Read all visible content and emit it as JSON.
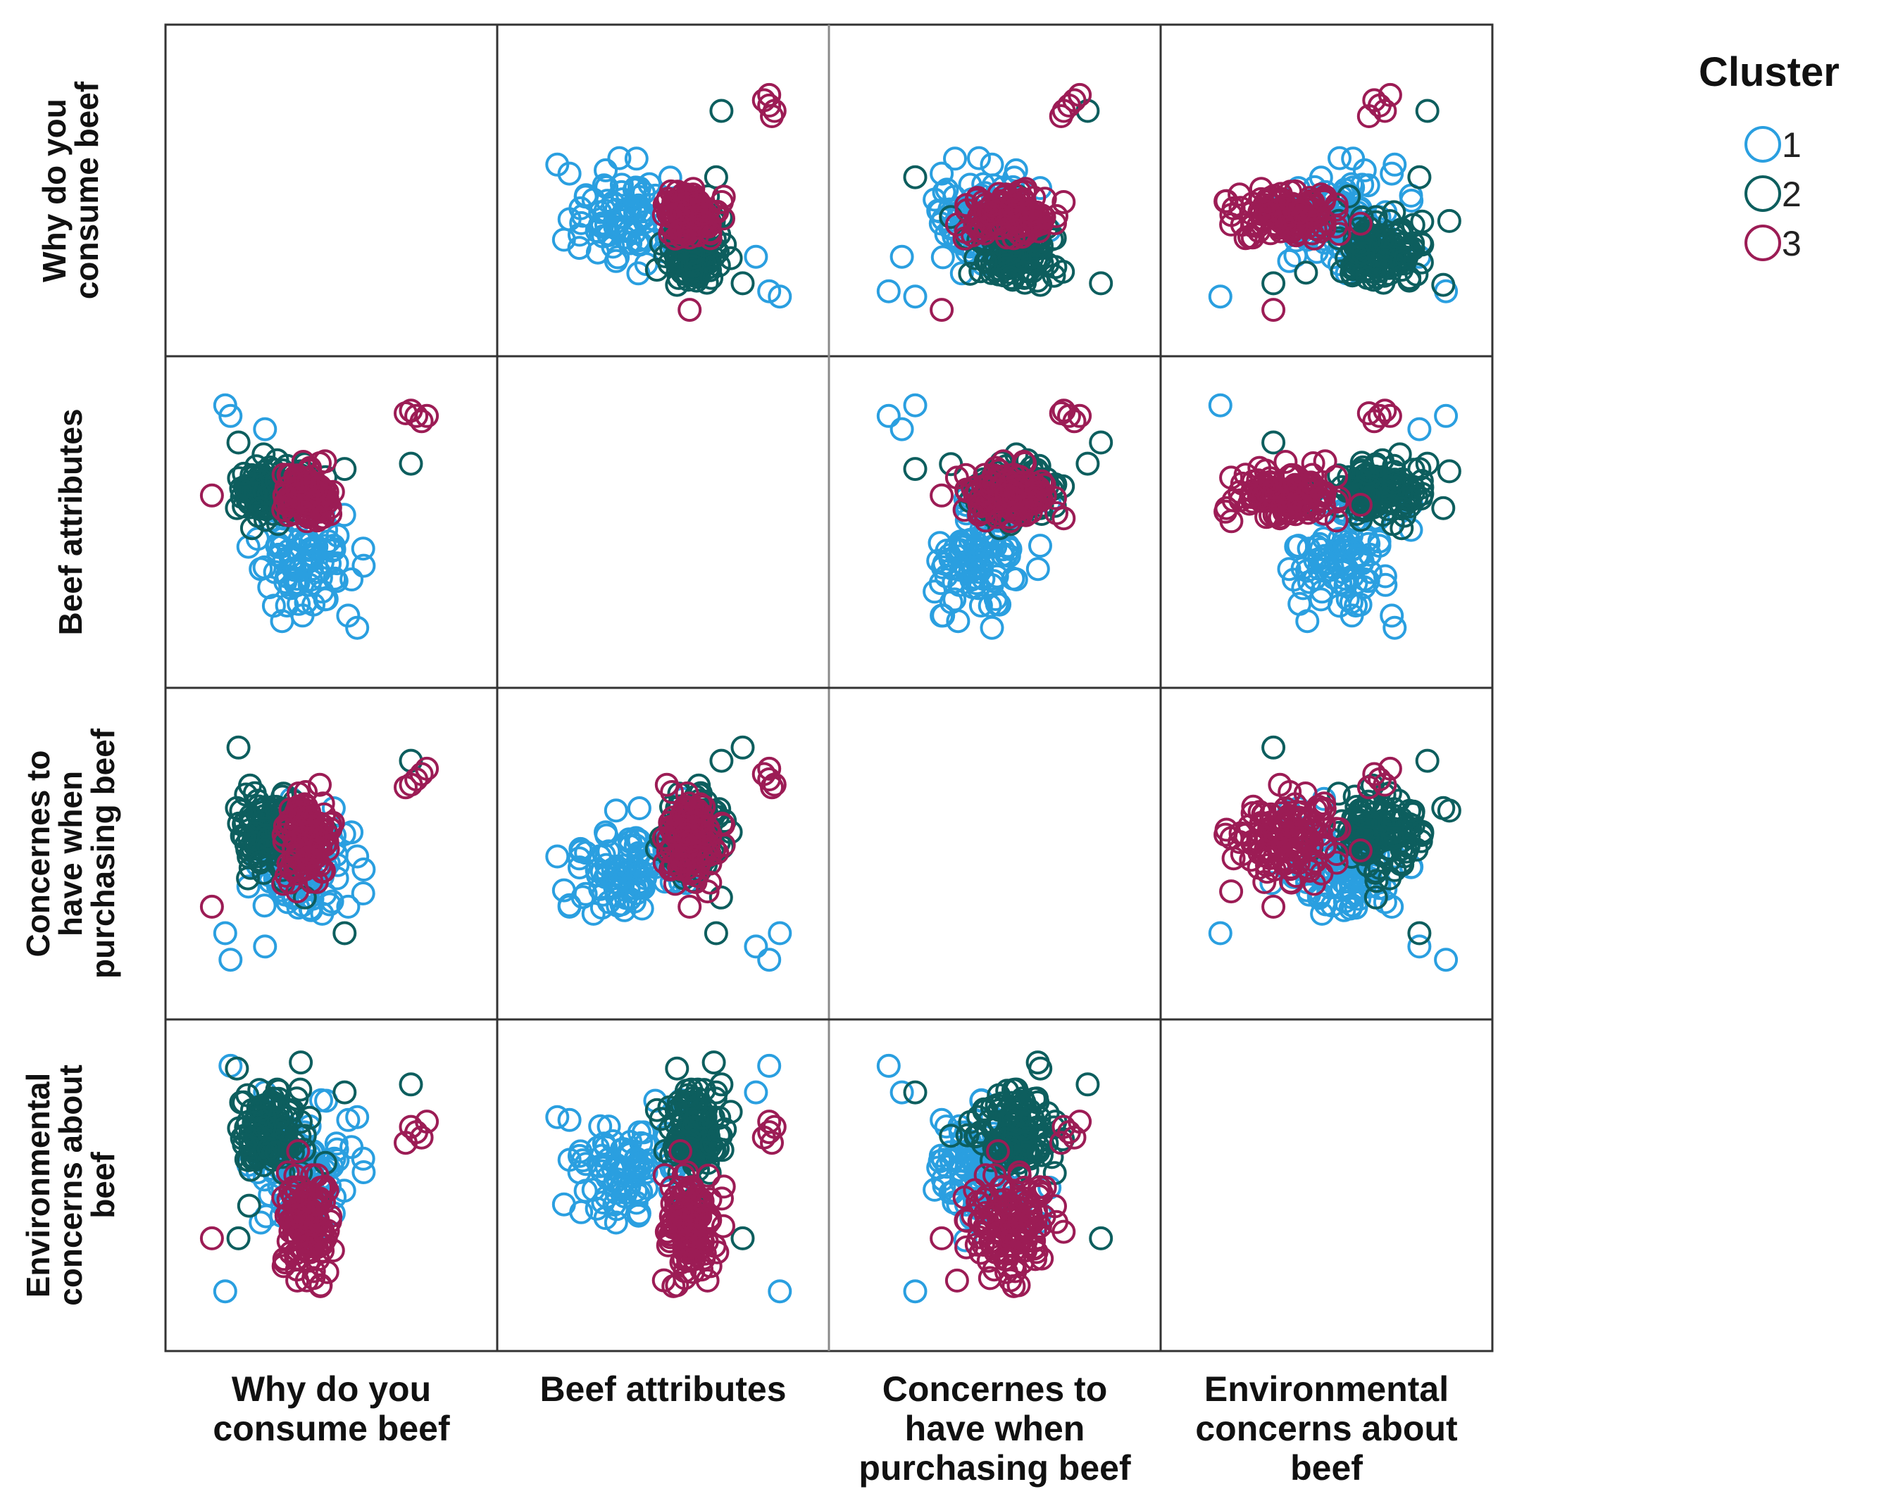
{
  "chart_data": {
    "type": "scatter",
    "subtype": "scatterplot-matrix",
    "variables": [
      {
        "label_lines": [
          "Why do you",
          "consume beef"
        ]
      },
      {
        "label_lines": [
          "Beef attributes"
        ]
      },
      {
        "label_lines": [
          "Concernes to",
          "have when",
          "purchasing beef"
        ]
      },
      {
        "label_lines": [
          "Environmental",
          "concerns about",
          "beef"
        ]
      }
    ],
    "axis_range": [
      0,
      1
    ],
    "diagonal": "empty",
    "grid": false,
    "legend": {
      "title": "Cluster",
      "placement": "top-right",
      "items": [
        {
          "label": "1",
          "color": "#2a9fe0"
        },
        {
          "label": "2",
          "color": "#0d5e5e"
        },
        {
          "label": "3",
          "color": "#9c1c55"
        }
      ]
    },
    "series": [
      {
        "name": "1",
        "color": "#2a9fe0",
        "centroid": [
          0.4,
          0.38,
          0.45,
          0.55
        ],
        "spread": [
          0.08,
          0.12,
          0.09,
          0.1
        ],
        "count": 90,
        "outliers": [
          [
            0.12,
            0.9,
            0.1,
            0.95
          ],
          [
            0.1,
            0.94,
            0.2,
            0.1
          ],
          [
            0.25,
            0.85,
            0.15,
            0.85
          ],
          [
            0.62,
            0.4,
            0.35,
            0.6
          ]
        ]
      },
      {
        "name": "2",
        "color": "#0d5e5e",
        "centroid": [
          0.27,
          0.62,
          0.58,
          0.7
        ],
        "spread": [
          0.06,
          0.05,
          0.08,
          0.09
        ],
        "count": 120,
        "outliers": [
          [
            0.15,
            0.8,
            0.9,
            0.3
          ],
          [
            0.55,
            0.7,
            0.2,
            0.85
          ],
          [
            0.8,
            0.72,
            0.85,
            0.88
          ]
        ]
      },
      {
        "name": "3",
        "color": "#9c1c55",
        "centroid": [
          0.4,
          0.6,
          0.55,
          0.35
        ],
        "spread": [
          0.05,
          0.05,
          0.08,
          0.1
        ],
        "count": 120,
        "outliers": [
          [
            0.82,
            0.9,
            0.78,
            0.7
          ],
          [
            0.8,
            0.92,
            0.76,
            0.72
          ],
          [
            0.84,
            0.88,
            0.8,
            0.68
          ],
          [
            0.78,
            0.91,
            0.75,
            0.66
          ],
          [
            0.86,
            0.9,
            0.82,
            0.74
          ],
          [
            0.05,
            0.6,
            0.3,
            0.3
          ]
        ]
      }
    ]
  }
}
